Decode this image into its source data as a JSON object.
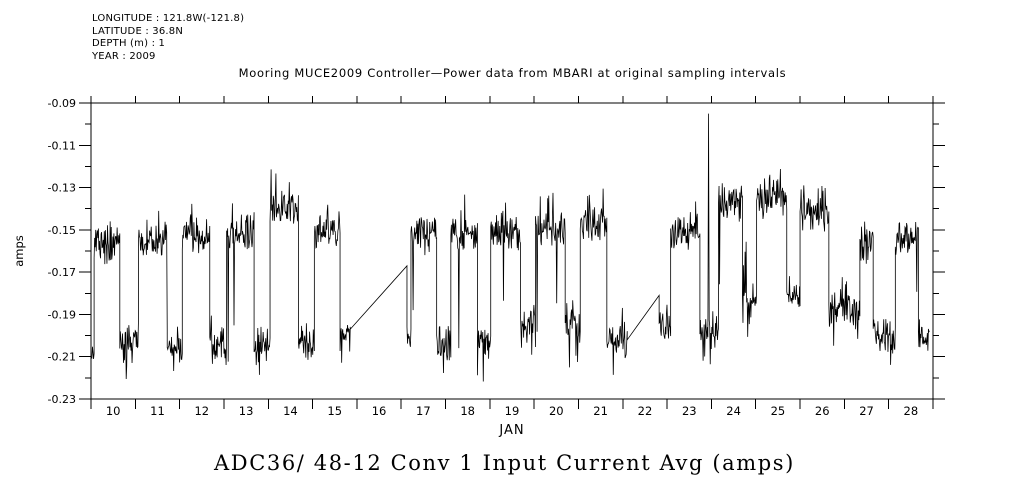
{
  "station_info": {
    "longitude": "LONGITUDE : 121.8W(-121.8)",
    "latitude": "LATITUDE : 36.8N",
    "depth": "DEPTH (m) : 1",
    "year": "YEAR : 2009"
  },
  "chart_data": {
    "type": "line",
    "title": "Mooring MUCE2009 Controller—Power data from MBARI at original sampling intervals",
    "footer_title": "ADC36/ 48-12 Conv 1 Input Current Avg (amps)",
    "xlabel": "JAN",
    "ylabel": "amps",
    "xlim": [
      10,
      29
    ],
    "ylim": [
      -0.23,
      -0.09
    ],
    "grid": false,
    "legend": "none",
    "line_color": "#000000",
    "axis_color": "#000000",
    "x_tick_days": [
      10,
      11,
      12,
      13,
      14,
      15,
      16,
      17,
      18,
      19,
      20,
      21,
      22,
      23,
      24,
      25,
      26,
      27,
      28,
      29
    ],
    "x_day_labels": [
      "10",
      "11",
      "12",
      "13",
      "14",
      "15",
      "16",
      "17",
      "18",
      "19",
      "20",
      "21",
      "22",
      "23",
      "24",
      "25",
      "26",
      "27",
      "28"
    ],
    "yticks": [
      -0.09,
      -0.11,
      -0.13,
      -0.15,
      -0.17,
      -0.19,
      -0.21,
      -0.23
    ],
    "y_tick_labels": [
      "-0.09",
      "-0.11",
      "-0.13",
      "-0.15",
      "-0.17",
      "-0.19",
      "-0.21",
      "-0.23"
    ],
    "y_minor_step": 0.01,
    "sample_interval_days": 0.012,
    "trace": [
      {
        "type": "block",
        "t0": 10.02,
        "t1": 10.07,
        "level": -0.212,
        "amp": 0.009
      },
      {
        "type": "block",
        "t0": 10.07,
        "t1": 10.65,
        "level": -0.157,
        "amp": 0.01
      },
      {
        "type": "block",
        "t0": 10.65,
        "t1": 11.07,
        "level": -0.203,
        "amp": 0.01
      },
      {
        "type": "block",
        "t0": 11.07,
        "t1": 11.72,
        "level": -0.156,
        "amp": 0.01
      },
      {
        "type": "block",
        "t0": 11.72,
        "t1": 12.06,
        "level": -0.204,
        "amp": 0.01
      },
      {
        "type": "block",
        "t0": 12.06,
        "t1": 12.68,
        "level": -0.154,
        "amp": 0.01
      },
      {
        "type": "block",
        "t0": 12.68,
        "t1": 13.06,
        "level": -0.205,
        "amp": 0.01
      },
      {
        "type": "block",
        "t0": 13.06,
        "t1": 13.68,
        "level": -0.151,
        "amp": 0.01
      },
      {
        "type": "block",
        "t0": 13.68,
        "t1": 14.04,
        "level": -0.205,
        "amp": 0.01
      },
      {
        "type": "block",
        "t0": 14.04,
        "t1": 14.68,
        "level": -0.14,
        "amp": 0.01
      },
      {
        "type": "block",
        "t0": 14.68,
        "t1": 15.04,
        "level": -0.202,
        "amp": 0.01
      },
      {
        "type": "block",
        "t0": 15.04,
        "t1": 15.62,
        "level": -0.15,
        "amp": 0.01
      },
      {
        "type": "block",
        "t0": 15.62,
        "t1": 15.85,
        "level": -0.201,
        "amp": 0.009
      },
      {
        "type": "line",
        "t0": 15.85,
        "v0": -0.197,
        "t1": 17.13,
        "v1": -0.167
      },
      {
        "type": "block",
        "t0": 17.13,
        "t1": 17.22,
        "level": -0.203,
        "amp": 0.009
      },
      {
        "type": "block",
        "t0": 17.22,
        "t1": 17.8,
        "level": -0.153,
        "amp": 0.01
      },
      {
        "type": "block",
        "t0": 17.8,
        "t1": 18.12,
        "level": -0.204,
        "amp": 0.01
      },
      {
        "type": "block",
        "t0": 18.12,
        "t1": 18.72,
        "level": -0.152,
        "amp": 0.01
      },
      {
        "type": "block",
        "t0": 18.72,
        "t1": 19.02,
        "level": -0.203,
        "amp": 0.01
      },
      {
        "type": "block",
        "t0": 19.02,
        "t1": 19.69,
        "level": -0.151,
        "amp": 0.01
      },
      {
        "type": "block",
        "t0": 19.69,
        "t1": 20.03,
        "level": -0.196,
        "amp": 0.01
      },
      {
        "type": "block",
        "t0": 20.03,
        "t1": 20.7,
        "level": -0.15,
        "amp": 0.01
      },
      {
        "type": "block",
        "t0": 20.7,
        "t1": 21.04,
        "level": -0.196,
        "amp": 0.01
      },
      {
        "type": "block",
        "t0": 21.04,
        "t1": 21.64,
        "level": -0.147,
        "amp": 0.01
      },
      {
        "type": "block",
        "t0": 21.64,
        "t1": 22.1,
        "level": -0.202,
        "amp": 0.01
      },
      {
        "type": "line",
        "t0": 22.1,
        "v0": -0.202,
        "t1": 22.82,
        "v1": -0.181
      },
      {
        "type": "block",
        "t0": 22.82,
        "t1": 23.08,
        "level": -0.194,
        "amp": 0.01
      },
      {
        "type": "block",
        "t0": 23.08,
        "t1": 23.74,
        "level": -0.151,
        "amp": 0.01
      },
      {
        "type": "block",
        "t0": 23.74,
        "t1": 23.92,
        "level": -0.196,
        "amp": 0.01
      },
      {
        "type": "spike",
        "t": 23.935,
        "v": -0.095
      },
      {
        "type": "block",
        "t0": 23.95,
        "t1": 24.16,
        "level": -0.197,
        "amp": 0.01
      },
      {
        "type": "block",
        "t0": 24.16,
        "t1": 24.7,
        "level": -0.137,
        "amp": 0.01
      },
      {
        "type": "block",
        "t0": 24.7,
        "t1": 25.02,
        "level": -0.182,
        "amp": 0.01
      },
      {
        "type": "block",
        "t0": 25.02,
        "t1": 25.7,
        "level": -0.137,
        "amp": 0.01
      },
      {
        "type": "block",
        "t0": 25.7,
        "t1": 26.0,
        "level": -0.181,
        "amp": 0.01
      },
      {
        "type": "block",
        "t0": 26.0,
        "t1": 26.65,
        "level": -0.143,
        "amp": 0.01
      },
      {
        "type": "block",
        "t0": 26.65,
        "t1": 27.35,
        "level": -0.186,
        "amp": 0.012
      },
      {
        "type": "block",
        "t0": 27.35,
        "t1": 27.65,
        "level": -0.157,
        "amp": 0.01
      },
      {
        "type": "block",
        "t0": 27.65,
        "t1": 28.15,
        "level": -0.2,
        "amp": 0.01
      },
      {
        "type": "block",
        "t0": 28.15,
        "t1": 28.67,
        "level": -0.155,
        "amp": 0.01
      },
      {
        "type": "block",
        "t0": 28.67,
        "t1": 28.92,
        "level": -0.201,
        "amp": 0.009
      }
    ]
  }
}
